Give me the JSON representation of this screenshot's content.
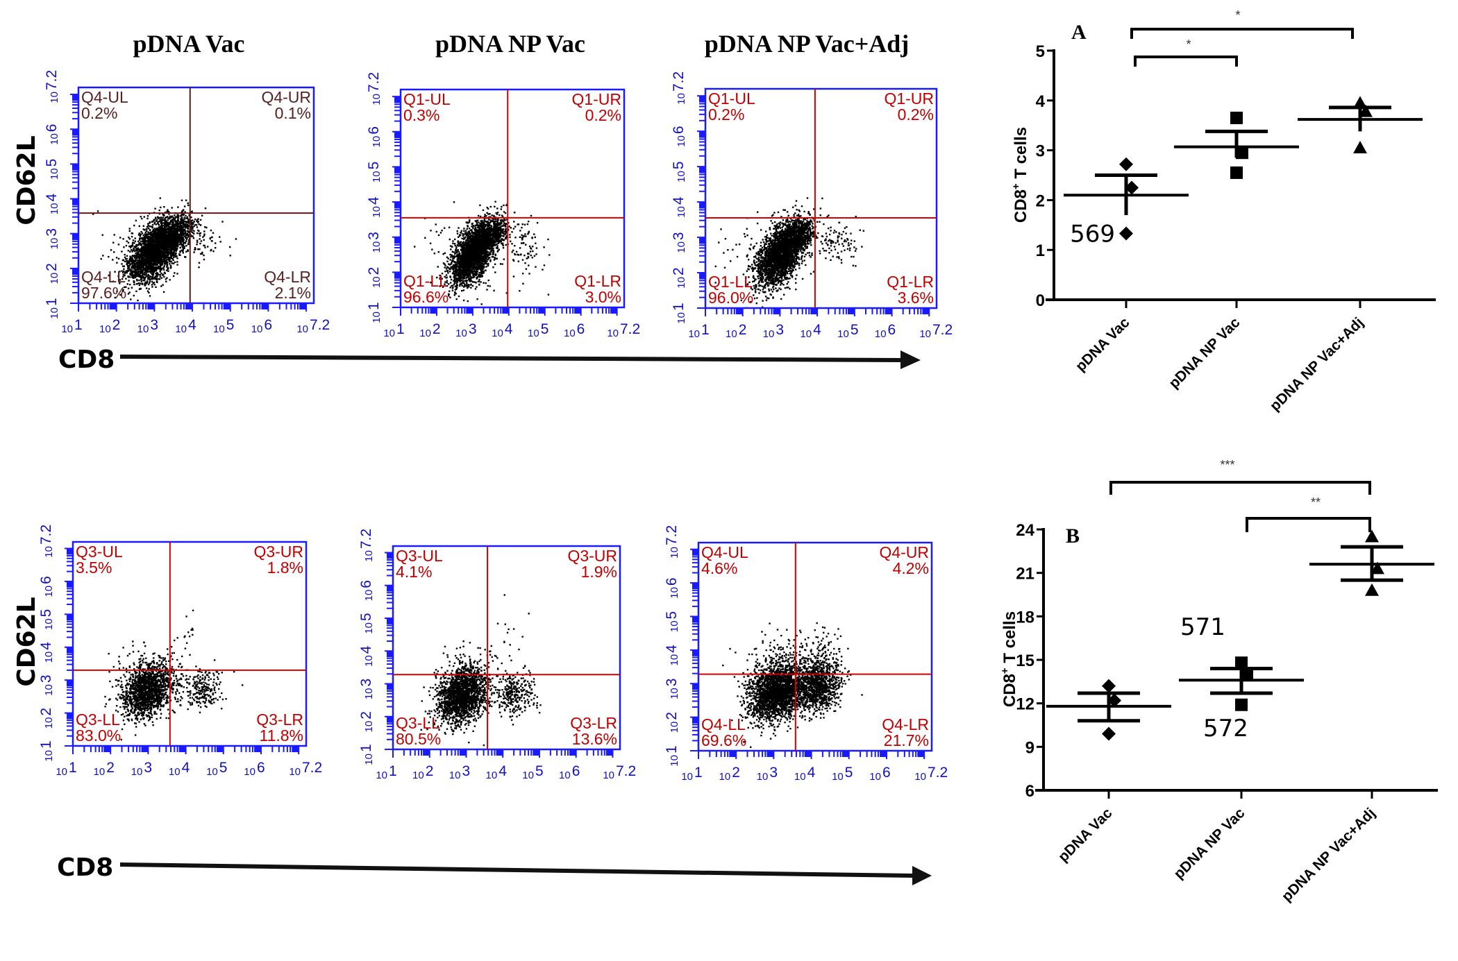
{
  "figure": {
    "column_titles": [
      "pDNA Vac",
      "pDNA NP Vac",
      "pDNA NP Vac+Adj"
    ],
    "y_axis_name": "CD62L",
    "x_axis_name": "CD8"
  },
  "flow_axis": {
    "min_decade": 1,
    "max_decade": 7.2,
    "tick_labels": [
      {
        "base": "10",
        "exp": "1"
      },
      {
        "base": "10",
        "exp": "2"
      },
      {
        "base": "10",
        "exp": "3"
      },
      {
        "base": "10",
        "exp": "4"
      },
      {
        "base": "10",
        "exp": "5"
      },
      {
        "base": "10",
        "exp": "6"
      },
      {
        "base": "10",
        "exp": "7.2"
      }
    ],
    "frame_color": "#1a1aff",
    "gate_color": "#d40000",
    "gate_color_dark": "#5a1a1a"
  },
  "chart_data": [
    {
      "type": "scatter",
      "subtype": "flow-cytometry-quadrant",
      "row": 1,
      "title": "pDNA Vac",
      "xlabel": "CD8",
      "ylabel": "CD62L",
      "xscale": "log",
      "yscale": "log",
      "xlim_decades": [
        1,
        7.2
      ],
      "ylim_decades": [
        1,
        7.2
      ],
      "gate_x_decade": 3.94,
      "gate_y_decade": 3.59,
      "gate_style": "dark",
      "quadrants": {
        "UL": {
          "name": "Q4-UL",
          "percent": "0.2%"
        },
        "UR": {
          "name": "Q4-UR",
          "percent": "0.1%"
        },
        "LL": {
          "name": "Q4-LL",
          "percent": "97.6%"
        },
        "LR": {
          "name": "Q4-LR",
          "percent": "2.1%"
        }
      },
      "populations": [
        {
          "cx": 3.0,
          "cy": 2.55,
          "sx": 0.35,
          "sy": 0.45,
          "n": 2600,
          "rho": 0.55
        },
        {
          "cx": 3.6,
          "cy": 3.05,
          "sx": 0.22,
          "sy": 0.25,
          "n": 500,
          "rho": 0.4
        },
        {
          "cx": 4.3,
          "cy": 2.8,
          "sx": 0.3,
          "sy": 0.3,
          "n": 60,
          "rho": 0.0
        },
        {
          "cx": 2.7,
          "cy": 2.5,
          "sx": 0.6,
          "sy": 0.6,
          "n": 120,
          "rho": 0.0
        }
      ]
    },
    {
      "type": "scatter",
      "subtype": "flow-cytometry-quadrant",
      "row": 1,
      "title": "pDNA NP Vac",
      "xlabel": "CD8",
      "ylabel": "CD62L",
      "xscale": "log",
      "yscale": "log",
      "xlim_decades": [
        1,
        7.2
      ],
      "ylim_decades": [
        1,
        7.2
      ],
      "gate_x_decade": 3.97,
      "gate_y_decade": 3.55,
      "gate_style": "red",
      "quadrants": {
        "UL": {
          "name": "Q1-UL",
          "percent": "0.3%"
        },
        "UR": {
          "name": "Q1-UR",
          "percent": "0.2%"
        },
        "LL": {
          "name": "Q1-LL",
          "percent": "96.6%"
        },
        "LR": {
          "name": "Q1-LR",
          "percent": "3.0%"
        }
      },
      "populations": [
        {
          "cx": 3.0,
          "cy": 2.55,
          "sx": 0.3,
          "sy": 0.45,
          "n": 2500,
          "rho": 0.55
        },
        {
          "cx": 3.55,
          "cy": 3.1,
          "sx": 0.2,
          "sy": 0.22,
          "n": 450,
          "rho": 0.4
        },
        {
          "cx": 4.4,
          "cy": 2.75,
          "sx": 0.3,
          "sy": 0.35,
          "n": 90,
          "rho": 0.0
        },
        {
          "cx": 2.7,
          "cy": 2.5,
          "sx": 0.55,
          "sy": 0.6,
          "n": 120,
          "rho": 0.0
        }
      ]
    },
    {
      "type": "scatter",
      "subtype": "flow-cytometry-quadrant",
      "row": 1,
      "title": "pDNA NP Vac+Adj",
      "xlabel": "CD8",
      "ylabel": "CD62L",
      "xscale": "log",
      "yscale": "log",
      "xlim_decades": [
        1,
        7.2
      ],
      "ylim_decades": [
        1,
        7.2
      ],
      "gate_x_decade": 3.94,
      "gate_y_decade": 3.55,
      "gate_style": "red",
      "quadrants": {
        "UL": {
          "name": "Q1-UL",
          "percent": "0.2%"
        },
        "UR": {
          "name": "Q1-UR",
          "percent": "0.2%"
        },
        "LL": {
          "name": "Q1-LL",
          "percent": "96.0%"
        },
        "LR": {
          "name": "Q1-LR",
          "percent": "3.6%"
        }
      },
      "populations": [
        {
          "cx": 3.0,
          "cy": 2.55,
          "sx": 0.32,
          "sy": 0.45,
          "n": 2600,
          "rho": 0.55
        },
        {
          "cx": 3.5,
          "cy": 3.1,
          "sx": 0.22,
          "sy": 0.22,
          "n": 450,
          "rho": 0.4
        },
        {
          "cx": 4.5,
          "cy": 2.85,
          "sx": 0.3,
          "sy": 0.3,
          "n": 100,
          "rho": 0.0
        },
        {
          "cx": 2.6,
          "cy": 2.4,
          "sx": 0.6,
          "sy": 0.6,
          "n": 120,
          "rho": 0.0
        }
      ]
    },
    {
      "type": "scatter",
      "subtype": "flow-cytometry-quadrant",
      "row": 2,
      "title": "pDNA Vac",
      "xlabel": "CD8",
      "ylabel": "CD62L",
      "xscale": "log",
      "yscale": "log",
      "xlim_decades": [
        1,
        7.2
      ],
      "ylim_decades": [
        1,
        7.2
      ],
      "gate_x_decade": 3.58,
      "gate_y_decade": 3.3,
      "gate_style": "red",
      "quadrants": {
        "UL": {
          "name": "Q3-UL",
          "percent": "3.5%"
        },
        "UR": {
          "name": "Q3-UR",
          "percent": "1.8%"
        },
        "LL": {
          "name": "Q3-LL",
          "percent": "83.0%"
        },
        "LR": {
          "name": "Q3-LR",
          "percent": "11.8%"
        }
      },
      "populations": [
        {
          "cx": 2.95,
          "cy": 2.7,
          "sx": 0.35,
          "sy": 0.42,
          "n": 1500,
          "rho": 0.25
        },
        {
          "cx": 4.4,
          "cy": 2.75,
          "sx": 0.28,
          "sy": 0.3,
          "n": 220,
          "rho": 0.1
        },
        {
          "cx": 3.2,
          "cy": 3.3,
          "sx": 0.45,
          "sy": 0.5,
          "n": 110,
          "rho": 0.0
        },
        {
          "cx": 4.1,
          "cy": 4.6,
          "sx": 0.2,
          "sy": 0.35,
          "n": 12,
          "rho": 0.0
        }
      ]
    },
    {
      "type": "scatter",
      "subtype": "flow-cytometry-quadrant",
      "row": 2,
      "title": "pDNA NP Vac",
      "xlabel": "CD8",
      "ylabel": "CD62L",
      "xscale": "log",
      "yscale": "log",
      "xlim_decades": [
        1,
        7.2
      ],
      "ylim_decades": [
        1,
        7.2
      ],
      "gate_x_decade": 3.58,
      "gate_y_decade": 3.28,
      "gate_style": "red",
      "quadrants": {
        "UL": {
          "name": "Q3-UL",
          "percent": "4.1%"
        },
        "UR": {
          "name": "Q3-UR",
          "percent": "1.9%"
        },
        "LL": {
          "name": "Q3-LL",
          "percent": "80.5%"
        },
        "LR": {
          "name": "Q3-LR",
          "percent": "13.6%"
        }
      },
      "populations": [
        {
          "cx": 2.85,
          "cy": 2.65,
          "sx": 0.33,
          "sy": 0.42,
          "n": 1700,
          "rho": 0.25
        },
        {
          "cx": 4.3,
          "cy": 2.75,
          "sx": 0.3,
          "sy": 0.3,
          "n": 280,
          "rho": 0.1
        },
        {
          "cx": 3.1,
          "cy": 3.35,
          "sx": 0.45,
          "sy": 0.5,
          "n": 150,
          "rho": 0.0
        },
        {
          "cx": 4.1,
          "cy": 4.7,
          "sx": 0.2,
          "sy": 0.4,
          "n": 12,
          "rho": 0.0
        }
      ]
    },
    {
      "type": "scatter",
      "subtype": "flow-cytometry-quadrant",
      "row": 2,
      "title": "pDNA NP Vac+Adj",
      "xlabel": "CD8",
      "ylabel": "CD62L",
      "xscale": "log",
      "yscale": "log",
      "xlim_decades": [
        1,
        7.2
      ],
      "ylim_decades": [
        1,
        7.2
      ],
      "gate_x_decade": 3.58,
      "gate_y_decade": 3.28,
      "gate_style": "red",
      "quadrants": {
        "UL": {
          "name": "Q4-UL",
          "percent": "4.6%"
        },
        "UR": {
          "name": "Q4-UR",
          "percent": "4.2%"
        },
        "LL": {
          "name": "Q4-LL",
          "percent": "69.6%"
        },
        "LR": {
          "name": "Q4-LR",
          "percent": "21.7%"
        }
      },
      "populations": [
        {
          "cx": 3.05,
          "cy": 2.75,
          "sx": 0.38,
          "sy": 0.42,
          "n": 2200,
          "rho": 0.2
        },
        {
          "cx": 4.15,
          "cy": 2.95,
          "sx": 0.3,
          "sy": 0.38,
          "n": 900,
          "rho": 0.1
        },
        {
          "cx": 3.2,
          "cy": 3.5,
          "sx": 0.45,
          "sy": 0.45,
          "n": 220,
          "rho": 0.0
        },
        {
          "cx": 4.2,
          "cy": 3.8,
          "sx": 0.3,
          "sy": 0.4,
          "n": 120,
          "rho": 0.0
        }
      ]
    },
    {
      "type": "scatter",
      "subtype": "dot-plot-mean-sem",
      "panel": "A",
      "title": "",
      "xlabel": "",
      "ylabel": "CD8+ T cells",
      "ylabel_main": "CD8",
      "ylabel_sup": "+",
      "ylabel_rest": " T cells",
      "ylim": [
        0,
        5
      ],
      "yticks": [
        0,
        1,
        2,
        3,
        4,
        5
      ],
      "categories": [
        "pDNA Vac",
        "pDNA NP Vac",
        "pDNA NP Vac+Adj"
      ],
      "series": [
        {
          "name": "pDNA Vac",
          "marker": "diamond",
          "values": [
            2.72,
            2.25,
            1.33
          ],
          "mean": 2.1,
          "sem_low": 1.7,
          "sem_high": 2.5
        },
        {
          "name": "pDNA NP Vac",
          "marker": "square",
          "values": [
            3.65,
            2.95,
            2.55
          ],
          "mean": 3.07,
          "sem_low": 2.85,
          "sem_high": 3.38
        },
        {
          "name": "pDNA NP Vac+Adj",
          "marker": "triangle",
          "values": [
            3.95,
            3.78,
            3.05
          ],
          "mean": 3.62,
          "sem_low": 3.38,
          "sem_high": 3.86
        }
      ],
      "significance": [
        {
          "from": 0,
          "to": 2,
          "label": "*",
          "level": 2
        },
        {
          "from": 0,
          "to": 1,
          "label": "*",
          "level": 1
        }
      ],
      "annotations": [
        {
          "text": "569",
          "x_index": 0,
          "y": 1.33,
          "position": "left"
        }
      ]
    },
    {
      "type": "scatter",
      "subtype": "dot-plot-mean-sem",
      "panel": "B",
      "title": "",
      "xlabel": "",
      "ylabel": "CD8+ T cells",
      "ylabel_main": "CD8",
      "ylabel_sup": "+",
      "ylabel_rest": " T cells",
      "ylim": [
        6,
        24
      ],
      "yticks": [
        6,
        9,
        12,
        15,
        18,
        21,
        24
      ],
      "categories": [
        "pDNA Vac",
        "pDNA NP Vac",
        "pDNA NP Vac+Adj"
      ],
      "series": [
        {
          "name": "pDNA Vac",
          "marker": "diamond",
          "values": [
            13.2,
            12.2,
            9.9
          ],
          "mean": 11.8,
          "sem_low": 10.8,
          "sem_high": 12.7
        },
        {
          "name": "pDNA NP Vac",
          "marker": "square",
          "values": [
            14.8,
            14.0,
            11.9
          ],
          "mean": 13.6,
          "sem_low": 12.7,
          "sem_high": 14.4
        },
        {
          "name": "pDNA NP Vac+Adj",
          "marker": "triangle",
          "values": [
            23.5,
            21.3,
            19.8
          ],
          "mean": 21.6,
          "sem_low": 20.5,
          "sem_high": 22.8
        }
      ],
      "significance": [
        {
          "from": 0,
          "to": 2,
          "label": "***",
          "level": 2
        },
        {
          "from": 1,
          "to": 2,
          "label": "**",
          "level": 1
        }
      ],
      "annotations": [
        {
          "text": "571",
          "x_index": 1,
          "y": 17.3,
          "position": "above-left"
        },
        {
          "text": "572",
          "x_index": 1,
          "y": 10.3,
          "position": "below"
        }
      ]
    }
  ]
}
